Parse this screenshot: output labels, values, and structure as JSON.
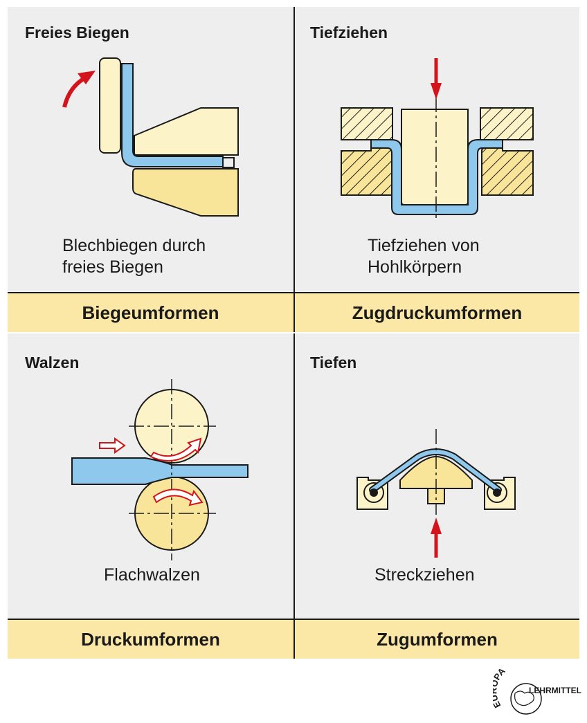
{
  "panels": {
    "top_left": {
      "title": "Freies Biegen",
      "caption_line1": "Blechbiegen durch",
      "caption_line2": "freies Biegen",
      "footer": "Biegeumformen"
    },
    "top_right": {
      "title": "Tiefziehen",
      "caption_line1": "Tiefziehen von",
      "caption_line2": "Hohlkörpern",
      "footer": "Zugdruckumformen"
    },
    "bottom_left": {
      "title": "Walzen",
      "caption_line1": "Flachwalzen",
      "footer": "Druckumformen"
    },
    "bottom_right": {
      "title": "Tiefen",
      "caption_line1": "Streckziehen",
      "footer": "Zugumformen"
    }
  },
  "logo": {
    "text_arc": "EUROPA",
    "text_side": "LEHRMITTEL"
  },
  "colors": {
    "panel_bg": "#eeeeee",
    "footer_bg": "#fbe8a6",
    "sheet_metal": "#8ec8ec",
    "tool_fill": "#fdf3c8",
    "tool_fill_dark": "#f9e59a",
    "arrow_red": "#d4141c",
    "line": "#1a1a1a"
  }
}
